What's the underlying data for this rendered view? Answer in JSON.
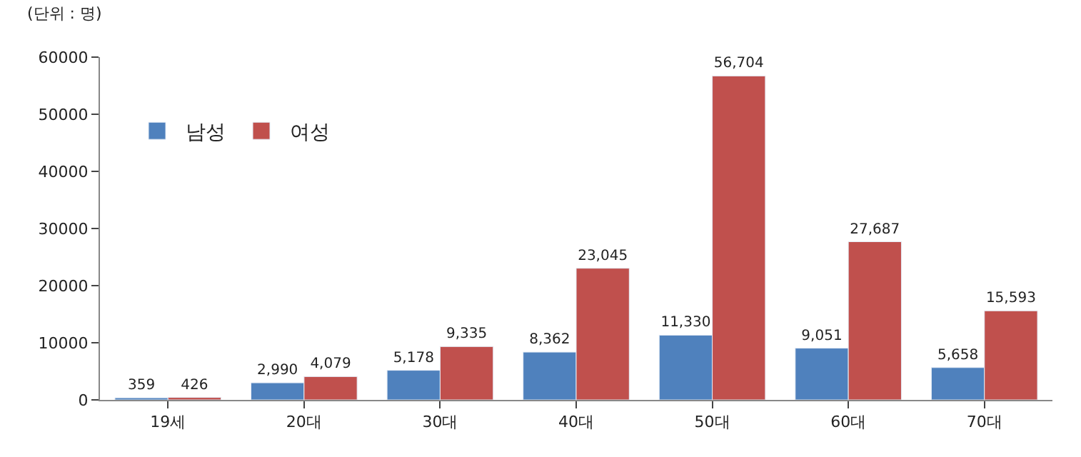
{
  "chart_data": {
    "type": "bar",
    "categories": [
      "19세",
      "20대",
      "30대",
      "40대",
      "50대",
      "60대",
      "70대"
    ],
    "series": [
      {
        "name": "남성",
        "color": "#4f81bd",
        "values": [
          359,
          2990,
          5178,
          8362,
          11330,
          9051,
          5658
        ],
        "value_labels": [
          "359",
          "2,990",
          "5,178",
          "8,362",
          "11,330",
          "9,051",
          "5,658"
        ]
      },
      {
        "name": "여성",
        "color": "#c0504d",
        "values": [
          426,
          4079,
          9335,
          23045,
          56704,
          27687,
          15593
        ],
        "value_labels": [
          "426",
          "4,079",
          "9,335",
          "23,045",
          "56,704",
          "27,687",
          "15,593"
        ]
      }
    ],
    "ylim": [
      0,
      60000
    ],
    "yticks": [
      0,
      10000,
      20000,
      30000,
      40000,
      50000,
      60000
    ],
    "annotations": [
      "(단위 : 명)"
    ],
    "legend": "top left"
  }
}
